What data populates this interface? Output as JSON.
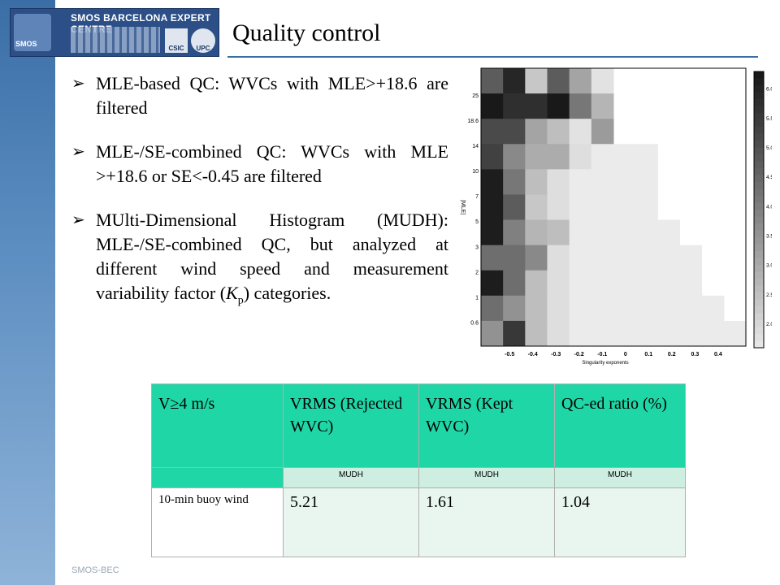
{
  "header": {
    "org_name": "SMOS BARCELONA EXPERT CENTRE",
    "emblem_label": "SMOS",
    "badge_csic": "CSIC",
    "badge_upc": "UPC",
    "title": "Quality control"
  },
  "bullets": [
    {
      "text": "MLE-based QC: WVCs with MLE>+18.6 are filtered"
    },
    {
      "text": "MLE-/SE-combined QC: WVCs with MLE >+18.6 or SE<-0.45 are filtered"
    },
    {
      "text_before": "MUlti-Dimensional Histogram (MUDH): MLE-/SE-combined QC, but analyzed at different wind speed and measurement variability factor (",
      "kp_main": "K",
      "kp_sub": "p",
      "text_after": ") categories."
    }
  ],
  "chart_data": {
    "type": "heatmap",
    "xlabel": "Singularity exponents",
    "ylabel": "|MLE|",
    "x_ticks": [
      "-0.5",
      "-0.4",
      "-0.3",
      "-0.2",
      "-0.1",
      "0",
      "0.1",
      "0.2",
      "0.3",
      "0.4"
    ],
    "y_ticks": [
      "25",
      "18.6",
      "14",
      "10",
      "7",
      "5",
      "3",
      "2",
      "1",
      "0.6"
    ],
    "colorbar_ticks": [
      "6.0",
      "5.5",
      "5.0",
      "4.5",
      "4.0",
      "3.5",
      "3.0",
      "2.5",
      "2.0"
    ],
    "colorbar_range": [
      1.6,
      6.3
    ],
    "grid": [
      [
        4.8,
        6.0,
        2.4,
        4.8,
        3.2,
        1.8,
        null,
        null,
        null,
        null,
        null,
        null
      ],
      [
        6.3,
        5.8,
        5.8,
        6.3,
        4.2,
        2.8,
        null,
        null,
        null,
        null,
        null,
        null
      ],
      [
        5.2,
        5.2,
        3.2,
        2.6,
        1.8,
        3.4,
        null,
        null,
        null,
        null,
        null,
        null
      ],
      [
        5.4,
        3.8,
        3.0,
        3.0,
        1.9,
        1.6,
        1.6,
        1.6,
        null,
        null,
        null,
        null
      ],
      [
        6.2,
        4.2,
        2.6,
        1.9,
        1.6,
        1.6,
        1.6,
        1.6,
        null,
        null,
        null,
        null
      ],
      [
        6.2,
        4.8,
        2.4,
        1.9,
        1.6,
        1.6,
        1.6,
        1.6,
        null,
        null,
        null,
        null
      ],
      [
        6.2,
        4.0,
        2.8,
        2.6,
        1.6,
        1.6,
        1.6,
        1.6,
        1.6,
        null,
        null,
        null
      ],
      [
        4.4,
        4.4,
        3.8,
        1.9,
        1.6,
        1.6,
        1.6,
        1.6,
        1.6,
        1.6,
        null,
        null
      ],
      [
        6.2,
        4.4,
        2.6,
        1.9,
        1.6,
        1.6,
        1.6,
        1.6,
        1.6,
        1.6,
        null,
        null
      ],
      [
        4.4,
        3.6,
        2.6,
        1.9,
        1.6,
        1.6,
        1.6,
        1.6,
        1.6,
        1.6,
        1.6,
        null
      ],
      [
        3.6,
        5.6,
        2.6,
        1.9,
        1.6,
        1.6,
        1.6,
        1.6,
        1.6,
        1.6,
        1.6,
        1.6
      ]
    ]
  },
  "table": {
    "headers": [
      "V≥4 m/s",
      "VRMS (Rejected WVC)",
      "VRMS (Kept WVC)",
      "QC-ed ratio (%)"
    ],
    "subheaders": [
      "",
      "MUDH",
      "MUDH",
      "MUDH"
    ],
    "rows": [
      {
        "label": "10-min buoy wind",
        "values": [
          "5.21",
          "1.61",
          "1.04"
        ]
      }
    ]
  },
  "footer": {
    "text": "SMOS-BEC"
  }
}
